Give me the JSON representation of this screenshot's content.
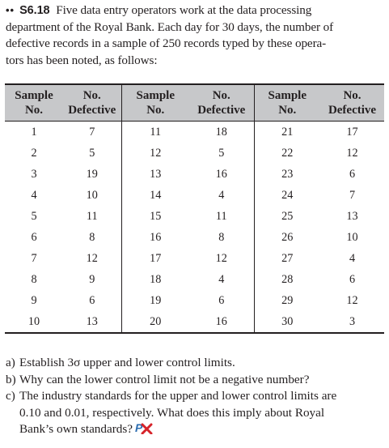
{
  "problem": {
    "difficulty_dots": "••",
    "number": "S6.18",
    "text_lines": [
      "Five data entry operators work at the data processing",
      "department of the Royal Bank. Each day for 30 days, the number of",
      "defective records in a sample of 250 records typed by these opera-",
      "tors has been noted, as follows:"
    ]
  },
  "table": {
    "headers": [
      [
        "Sample",
        "No."
      ],
      [
        "No.",
        "Defective"
      ],
      [
        "Sample",
        "No."
      ],
      [
        "No.",
        "Defective"
      ],
      [
        "Sample",
        "No."
      ],
      [
        "No.",
        "Defective"
      ]
    ],
    "rows": [
      [
        "1",
        "7",
        "11",
        "18",
        "21",
        "17"
      ],
      [
        "2",
        "5",
        "12",
        "5",
        "22",
        "12"
      ],
      [
        "3",
        "19",
        "13",
        "16",
        "23",
        "6"
      ],
      [
        "4",
        "10",
        "14",
        "4",
        "24",
        "7"
      ],
      [
        "5",
        "11",
        "15",
        "11",
        "25",
        "13"
      ],
      [
        "6",
        "8",
        "16",
        "8",
        "26",
        "10"
      ],
      [
        "7",
        "12",
        "17",
        "12",
        "27",
        "4"
      ],
      [
        "8",
        "9",
        "18",
        "4",
        "28",
        "6"
      ],
      [
        "9",
        "6",
        "19",
        "6",
        "29",
        "12"
      ],
      [
        "10",
        "13",
        "20",
        "16",
        "30",
        "3"
      ]
    ]
  },
  "questions": [
    {
      "label": "a)",
      "lines": [
        "Establish 3σ upper and lower control limits."
      ]
    },
    {
      "label": "b)",
      "lines": [
        "Why can the lower control limit not be a negative number?"
      ]
    },
    {
      "label": "c)",
      "lines": [
        "The industry standards for the upper and lower control limits are",
        "0.10 and 0.01, respectively. What does this imply about Royal",
        "Bank’s own standards?"
      ]
    }
  ],
  "icons": {
    "px_logo": "px-logo-icon"
  },
  "colors": {
    "header_background": "#c7c8ca",
    "text": "#231f20",
    "logo_blue": "#2b6cb0",
    "logo_red": "#d6232a"
  }
}
